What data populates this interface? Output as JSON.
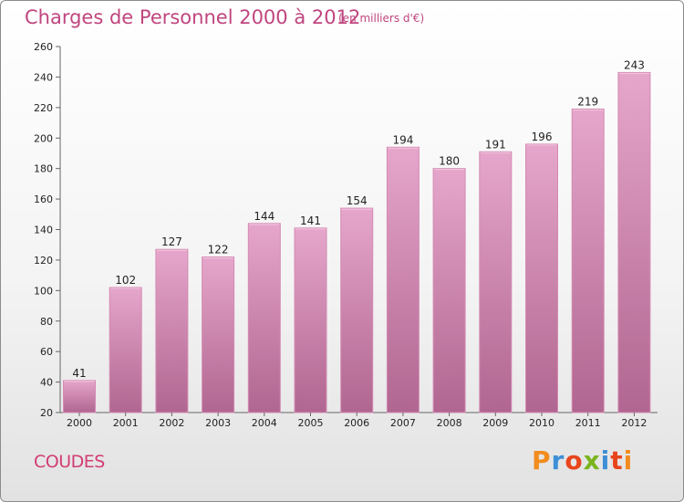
{
  "header": {
    "title": "Charges de Personnel 2000 à 2012",
    "unit": "(en milliers d'€)"
  },
  "footer": {
    "commune": "COUDES",
    "logo": "Proxiti"
  },
  "colors": {
    "title": "#c0457f",
    "bar_top": "#e6a6cb",
    "bar_bottom": "#b06690",
    "logo": [
      "#f28c1e",
      "#3e8fd6",
      "#e8451c",
      "#7ab51d",
      "#3e8fd6",
      "#e8451c",
      "#f28c1e"
    ]
  },
  "chart_data": {
    "type": "bar",
    "title": "Charges de Personnel 2000 à 2012",
    "subtitle": "(en milliers d'€)",
    "categories": [
      "2000",
      "2001",
      "2002",
      "2003",
      "2004",
      "2005",
      "2006",
      "2007",
      "2008",
      "2009",
      "2010",
      "2011",
      "2012"
    ],
    "values": [
      41,
      102,
      127,
      122,
      144,
      141,
      154,
      194,
      180,
      191,
      196,
      219,
      243
    ],
    "ylim": [
      20,
      260
    ],
    "yticks": [
      20,
      40,
      60,
      80,
      100,
      120,
      140,
      160,
      180,
      200,
      220,
      240,
      260
    ],
    "grid": false,
    "data_labels": true
  }
}
